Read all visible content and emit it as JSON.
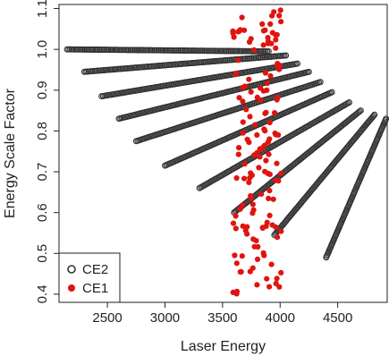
{
  "chart_data": {
    "type": "scatter",
    "title": "",
    "xlabel": "Laser Energy",
    "ylabel": "Energy Scale Factor",
    "xlim": [
      2080,
      4930
    ],
    "ylim": [
      0.38,
      1.11
    ],
    "x_ticks": [
      2500,
      3000,
      3500,
      4000,
      4500
    ],
    "y_ticks": [
      0.4,
      0.5,
      0.6,
      0.7,
      0.8,
      0.9,
      1.0,
      1.1
    ],
    "x_tick_labels": [
      "2500",
      "3000",
      "3500",
      "4000",
      "4500"
    ],
    "y_tick_labels": [
      "0.4",
      "0.5",
      "0.6",
      "0.7",
      "0.8",
      "0.9",
      "1.0",
      "1.1"
    ],
    "grid": false,
    "legend_position": "bottom-left",
    "colors": {
      "CE2": "#333333",
      "CE1": "#e0140f",
      "axis": "#222222"
    },
    "series": [
      {
        "name": "CE2",
        "marker": "open-circle",
        "segments": [
          {
            "x": [
              2150,
              3900
            ],
            "y": [
              1.0,
              0.995
            ]
          },
          {
            "x": [
              2300,
              4050
            ],
            "y": [
              0.945,
              0.985
            ]
          },
          {
            "x": [
              2450,
              4150
            ],
            "y": [
              0.885,
              0.965
            ]
          },
          {
            "x": [
              2600,
              4250
            ],
            "y": [
              0.83,
              0.945
            ]
          },
          {
            "x": [
              2750,
              4350
            ],
            "y": [
              0.775,
              0.92
            ]
          },
          {
            "x": [
              3000,
              4450
            ],
            "y": [
              0.715,
              0.895
            ]
          },
          {
            "x": [
              3300,
              4600
            ],
            "y": [
              0.66,
              0.87
            ]
          },
          {
            "x": [
              3600,
              4700
            ],
            "y": [
              0.6,
              0.85
            ]
          },
          {
            "x": [
              3950,
              4820
            ],
            "y": [
              0.545,
              0.84
            ]
          },
          {
            "x": [
              4400,
              4920
            ],
            "y": [
              0.49,
              0.83
            ]
          }
        ]
      },
      {
        "name": "CE1",
        "marker": "filled-circle",
        "x_range": [
          3590,
          4010
        ],
        "y_range": [
          0.4,
          1.1
        ],
        "count": 150
      }
    ]
  }
}
